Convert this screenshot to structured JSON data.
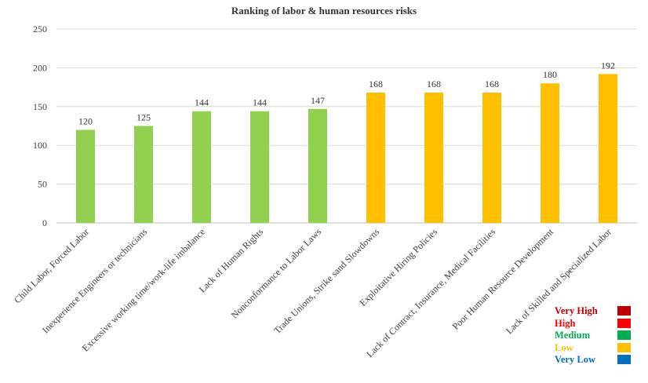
{
  "chart_data": {
    "type": "bar",
    "title": "Ranking of labor & human resources risks",
    "xlabel": "",
    "ylabel": "",
    "ylim": [
      0,
      250
    ],
    "yticks": [
      0,
      50,
      100,
      150,
      200,
      250
    ],
    "grid": true,
    "categories": [
      "Child Labor, Forced Labor",
      "Inexperience Engineers or technicians",
      "Excessive working time/work-life imbalance",
      "Lack of Human Rights",
      "Nonconformance to Labor Laws",
      "Trade Unions, Strike sand Slowdowns",
      "Exploitative Hiring Policies",
      "Lack of Contract, Insurance, Medical Facilities",
      "Poor Human Resource Development",
      "Lack of Skilled and Specialized Labor"
    ],
    "values": [
      120,
      125,
      144,
      144,
      147,
      168,
      168,
      168,
      180,
      192
    ],
    "bar_colors": [
      "#92d050",
      "#92d050",
      "#92d050",
      "#92d050",
      "#92d050",
      "#ffc000",
      "#ffc000",
      "#ffc000",
      "#ffc000",
      "#ffc000"
    ],
    "legend_placement": "bottom-right",
    "legend": [
      {
        "label": "Very High",
        "color": "#c00000"
      },
      {
        "label": "High",
        "color": "#ff0000"
      },
      {
        "label": "Medium",
        "color": "#00b050"
      },
      {
        "label": "Low",
        "color": "#ffc000"
      },
      {
        "label": "Very Low",
        "color": "#0070c0"
      }
    ]
  }
}
